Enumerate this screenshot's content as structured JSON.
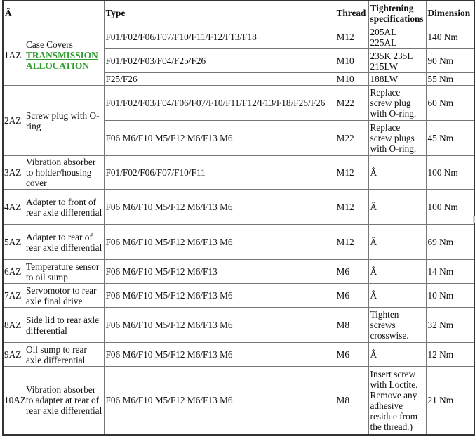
{
  "headers": {
    "item": "Â",
    "type": "Type",
    "thread": "Thread",
    "spec": "Tightening specifications",
    "dimension": "Dimension"
  },
  "rows": [
    {
      "code": "1AZ",
      "desc": "Case Covers",
      "link": "TRANSMISSION ALLOCATION",
      "sub": [
        {
          "type": "F01/F02/F06/F07/F10/F11/F12/F13/F18",
          "thread": "M12",
          "spec": "205AL 225AL",
          "dimension": "140 Nm"
        },
        {
          "type": "F01/F02/F03/F04/F25/F26",
          "thread": "M10",
          "spec": "235K 235L 215LW",
          "dimension": "90 Nm"
        },
        {
          "type": "F25/F26",
          "thread": "M10",
          "spec": "188LW",
          "dimension": "55 Nm"
        }
      ]
    },
    {
      "code": "2AZ",
      "desc": "Screw plug with O-ring",
      "sub": [
        {
          "type": "F01/F02/F03/F04/F06/F07/F10/F11/F12/F13/F18/F25/F26",
          "thread": "M22",
          "spec": "Replace screw plug with O-ring.",
          "dimension": "60 Nm"
        },
        {
          "type": "F06 M6/F10 M5/F12 M6/F13 M6",
          "thread": "M22",
          "spec": "Replace screw plugs with O-ring.",
          "dimension": "45 Nm"
        }
      ]
    },
    {
      "code": "3AZ",
      "desc": "Vibration absorber to holder/housing cover",
      "sub": [
        {
          "type": "F01/F02/F06/F07/F10/F11",
          "thread": "M12",
          "spec": "Â",
          "dimension": "100 Nm"
        }
      ]
    },
    {
      "code": "4AZ",
      "desc": "Adapter to front of rear axle differential",
      "sub": [
        {
          "type": "F06 M6/F10 M5/F12 M6/F13 M6",
          "thread": "M12",
          "spec": "Â",
          "dimension": "100 Nm"
        }
      ]
    },
    {
      "code": "5AZ",
      "desc": "Adapter to rear of rear axle differential",
      "sub": [
        {
          "type": "F06 M6/F10 M5/F12 M6/F13 M6",
          "thread": "M12",
          "spec": "Â",
          "dimension": "69 Nm"
        }
      ]
    },
    {
      "code": "6AZ",
      "desc": "Temperature sensor to oil sump",
      "sub": [
        {
          "type": "F06 M6/F10 M5/F12 M6/F13",
          "thread": "M6",
          "spec": "Â",
          "dimension": "14 Nm"
        }
      ]
    },
    {
      "code": "7AZ",
      "desc": "Servomotor to rear axle final drive",
      "sub": [
        {
          "type": "F06 M6/F10 M5/F12 M6/F13 M6",
          "thread": "M6",
          "spec": "Â",
          "dimension": "10 Nm"
        }
      ]
    },
    {
      "code": "8AZ",
      "desc": "Side lid to rear axle differential",
      "sub": [
        {
          "type": "F06 M6/F10 M5/F12 M6/F13 M6",
          "thread": "M8",
          "spec": "Tighten screws crosswise.",
          "dimension": "32 Nm"
        }
      ]
    },
    {
      "code": "9AZ",
      "desc": "Oil sump to rear axle differential",
      "sub": [
        {
          "type": "F06 M6/F10 M5/F12 M6/F13 M6",
          "thread": "M6",
          "spec": "Â",
          "dimension": "12 Nm"
        }
      ]
    },
    {
      "code": "10AZ",
      "desc": "Vibration absorber to adapter at rear of rear axle differential",
      "sub": [
        {
          "type": "F06 M6/F10 M5/F12 M6/F13 M6",
          "thread": "M8",
          "spec": "Insert screw with Loctite. Remove any adhesive residue from the thread.)",
          "dimension": "21 Nm"
        }
      ]
    }
  ]
}
